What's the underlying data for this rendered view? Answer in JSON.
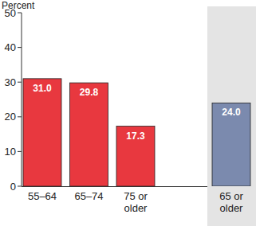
{
  "chart_data": {
    "type": "bar",
    "ylabel": "Percent",
    "categories": [
      "55–64",
      "65–74",
      "75 or older",
      "65 or older"
    ],
    "values": [
      31.0,
      29.8,
      17.3,
      24.0
    ],
    "value_labels": [
      "31.0",
      "29.8",
      "17.3",
      "24.0"
    ],
    "colors": [
      "#e8383f",
      "#e8383f",
      "#e8383f",
      "#7b8aae"
    ],
    "ylim": [
      0,
      50
    ],
    "yticks": [
      0,
      10,
      20,
      30,
      40,
      50
    ],
    "data_labels": true,
    "grid": false
  }
}
